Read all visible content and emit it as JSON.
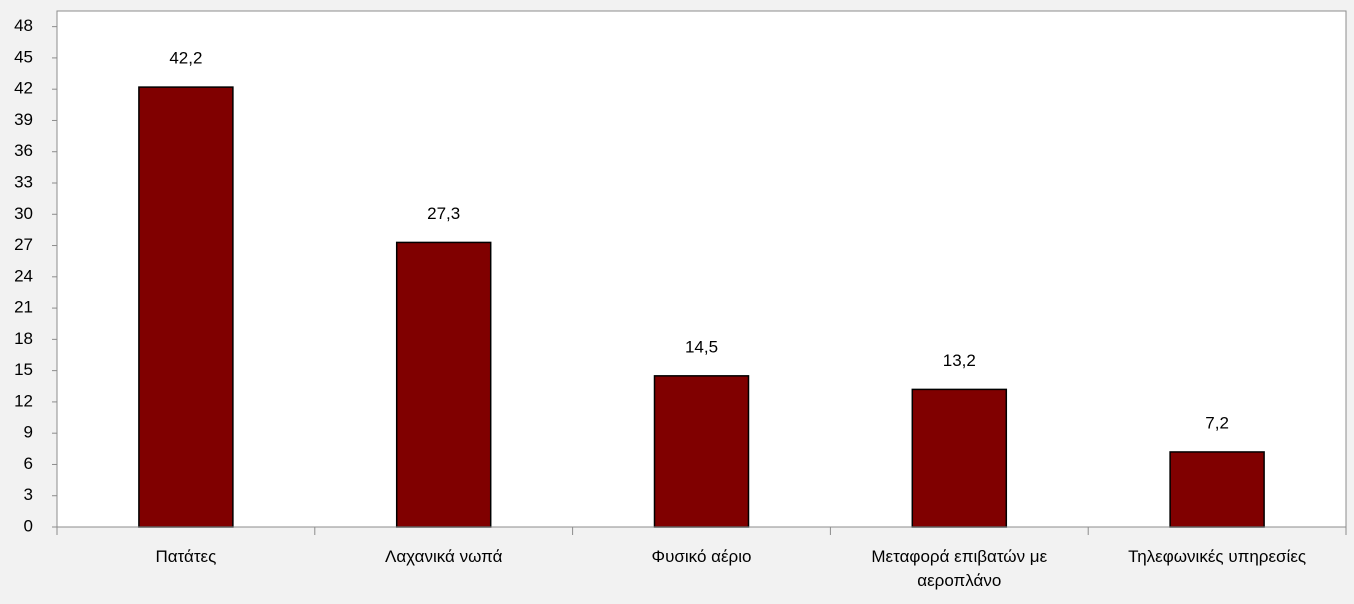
{
  "chart_data": {
    "type": "bar",
    "categories": [
      "Πατάτες",
      "Λαχανικά νωπά",
      "Φυσικό αέριο",
      "Μεταφορά επιβατών με αεροπλάνο",
      "Τηλεφωνικές υπηρεσίες"
    ],
    "values": [
      42.2,
      27.3,
      14.5,
      13.2,
      7.2
    ],
    "value_labels": [
      "42,2",
      "27,3",
      "14,5",
      "13,2",
      "7,2"
    ],
    "color": "#800000",
    "ylim": [
      0,
      49.5
    ],
    "yticks": [
      0,
      3,
      6,
      9,
      12,
      15,
      18,
      21,
      24,
      27,
      30,
      33,
      36,
      39,
      42,
      45,
      48
    ],
    "grid": false
  }
}
